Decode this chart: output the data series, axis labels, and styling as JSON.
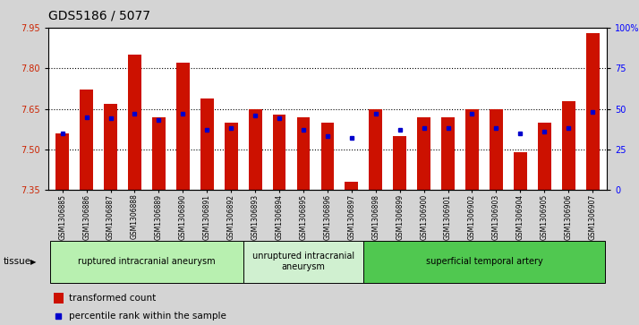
{
  "title": "GDS5186 / 5077",
  "samples": [
    "GSM1306885",
    "GSM1306886",
    "GSM1306887",
    "GSM1306888",
    "GSM1306889",
    "GSM1306890",
    "GSM1306891",
    "GSM1306892",
    "GSM1306893",
    "GSM1306894",
    "GSM1306895",
    "GSM1306896",
    "GSM1306897",
    "GSM1306898",
    "GSM1306899",
    "GSM1306900",
    "GSM1306901",
    "GSM1306902",
    "GSM1306903",
    "GSM1306904",
    "GSM1306905",
    "GSM1306906",
    "GSM1306907"
  ],
  "red_values": [
    7.56,
    7.72,
    7.67,
    7.85,
    7.62,
    7.82,
    7.69,
    7.6,
    7.65,
    7.63,
    7.62,
    7.6,
    7.38,
    7.65,
    7.55,
    7.62,
    7.62,
    7.65,
    7.65,
    7.49,
    7.6,
    7.68,
    7.93
  ],
  "blue_values": [
    35,
    45,
    44,
    47,
    43,
    47,
    37,
    38,
    46,
    44,
    37,
    33,
    32,
    47,
    37,
    38,
    38,
    47,
    38,
    35,
    36,
    38,
    48
  ],
  "ylim_left": [
    7.35,
    7.95
  ],
  "ylim_right": [
    0,
    100
  ],
  "yticks_left": [
    7.35,
    7.5,
    7.65,
    7.8,
    7.95
  ],
  "yticks_right": [
    0,
    25,
    50,
    75,
    100
  ],
  "ytick_right_labels": [
    "0",
    "25",
    "50",
    "75",
    "100%"
  ],
  "groups": [
    {
      "label": "ruptured intracranial aneurysm",
      "start": 0,
      "end": 8,
      "color": "#b8f0b0"
    },
    {
      "label": "unruptured intracranial\naneurysm",
      "start": 8,
      "end": 13,
      "color": "#d0f0d0"
    },
    {
      "label": "superficial temporal artery",
      "start": 13,
      "end": 23,
      "color": "#50c850"
    }
  ],
  "legend_items": [
    {
      "label": "transformed count",
      "color": "#cc1100"
    },
    {
      "label": "percentile rank within the sample",
      "color": "#0000cc"
    }
  ],
  "bar_color": "#cc1100",
  "dot_color": "#0000cc",
  "bar_width": 0.55,
  "fig_bg": "#d4d4d4",
  "plot_bg": "#ffffff",
  "grid_color": "#000000",
  "title_fontsize": 10,
  "tick_fontsize": 7,
  "label_fontsize": 7,
  "group_fontsize": 7,
  "tissue_label": "tissue",
  "base_value": 7.35,
  "grid_yticks": [
    7.5,
    7.65,
    7.8
  ]
}
